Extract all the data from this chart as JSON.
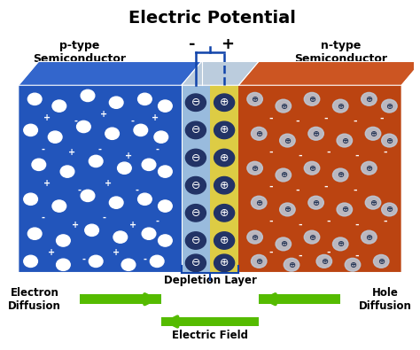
{
  "title": "Electric Potential",
  "title_fontsize": 14,
  "bg_color": "#ffffff",
  "p_type_label": "p-type\nSemiconductor",
  "n_type_label": "n-type\nSemiconductor",
  "electron_diffusion_label": "Electron\nDiffusion",
  "hole_diffusion_label": "Hole\nDiffusion",
  "depletion_label": "Depletion Layer",
  "efield_label": "Electric Field",
  "p_color": "#2255bb",
  "p_top_color": "#3366cc",
  "n_color": "#bb4411",
  "n_top_color": "#cc5522",
  "dep_left_color": "#99bbdd",
  "dep_right_color": "#ddcc44",
  "dep_top_color": "#bbccdd",
  "wire_color": "#1144aa",
  "arrow_color": "#55bb00",
  "ion_circle_color": "#aabbcc",
  "dep_circle_color": "#223366"
}
